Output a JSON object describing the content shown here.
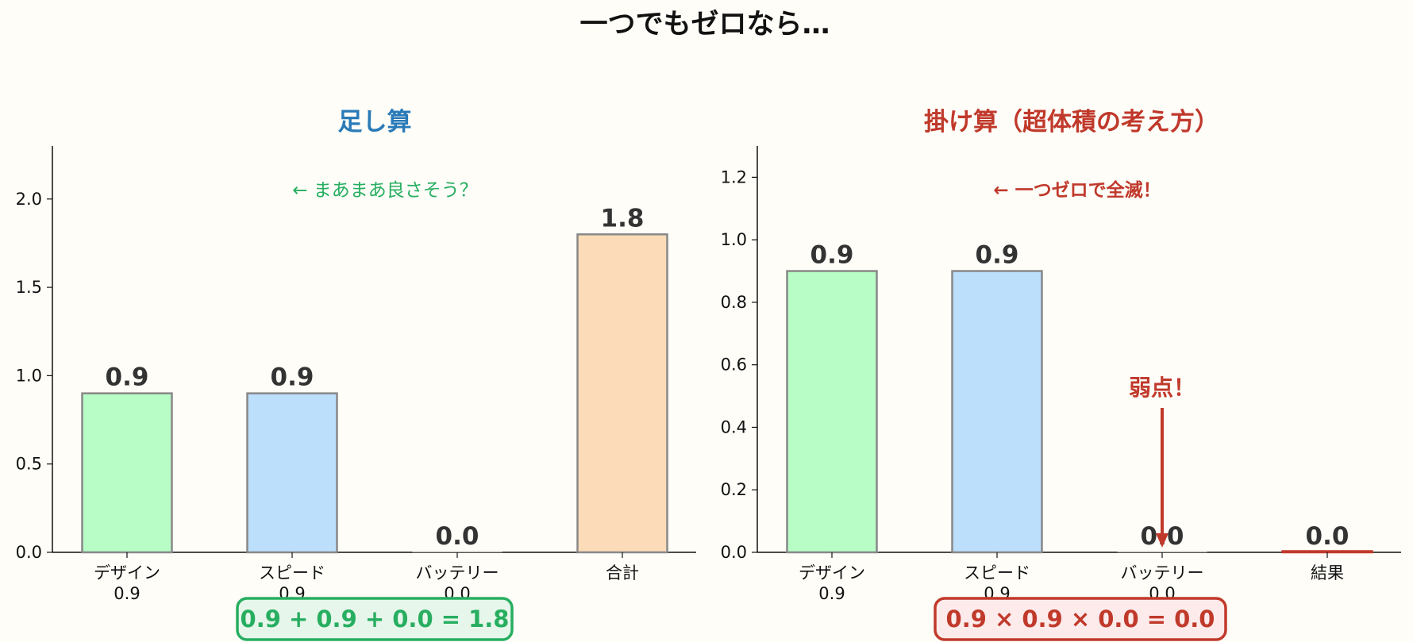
{
  "figure": {
    "suptitle": "一つでもゼロなら…"
  },
  "colors": {
    "design": "#b8fcc6",
    "speed": "#bcdffc",
    "battery": "#cccccc",
    "sum": "#fcdcb8",
    "bar_edge": "#888888",
    "green_accent": "#27ae60",
    "blue_title": "#2a7ab8",
    "red_accent": "#c0392b"
  },
  "chart_data": [
    {
      "type": "bar",
      "title": "足し算",
      "categories": [
        "デザイン\n0.9",
        "スピード\n0.9",
        "バッテリー\n0.0",
        "合計"
      ],
      "values": [
        0.9,
        0.9,
        0.0,
        1.8
      ],
      "value_labels": [
        "0.9",
        "0.9",
        "0.0",
        "1.8"
      ],
      "ylim": [
        0,
        2.3
      ],
      "yticks": [
        0.0,
        0.5,
        1.0,
        1.5,
        2.0
      ],
      "ytick_labels": [
        "0.0",
        "0.5",
        "1.0",
        "1.5",
        "2.0"
      ],
      "annotation": "← まあまあ良さそう？",
      "formula": "0.9 + 0.9 + 0.0 = 1.8",
      "xlabel": "",
      "ylabel": ""
    },
    {
      "type": "bar",
      "title": "掛け算（超体積の考え方）",
      "categories": [
        "デザイン\n0.9",
        "スピード\n0.9",
        "バッテリー\n0.0",
        "結果"
      ],
      "values": [
        0.9,
        0.9,
        0.0,
        0.0
      ],
      "value_labels": [
        "0.9",
        "0.9",
        "0.0",
        "0.0"
      ],
      "ylim": [
        0,
        1.3
      ],
      "yticks": [
        0.0,
        0.2,
        0.4,
        0.6,
        0.8,
        1.0,
        1.2
      ],
      "ytick_labels": [
        "0.0",
        "0.2",
        "0.4",
        "0.6",
        "0.8",
        "1.0",
        "1.2"
      ],
      "annotation": "← 一つゼロで全滅！",
      "weak_point_label": "弱点！",
      "formula": "0.9 × 0.9 × 0.0 = 0.0",
      "xlabel": "",
      "ylabel": ""
    }
  ]
}
